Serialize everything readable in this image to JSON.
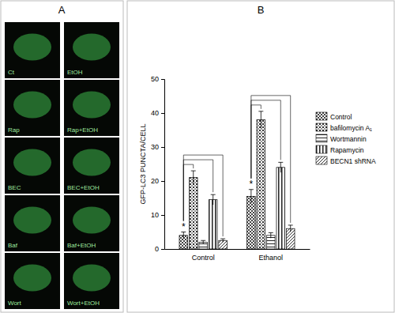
{
  "panel_a": {
    "label": "A",
    "images": [
      "Ct",
      "EtOH",
      "Rap",
      "Rap+EtOH",
      "BEC",
      "BEC+EtOH",
      "Baf",
      "Baf+EtOH",
      "Wort",
      "Wort+EtOH"
    ]
  },
  "panel_b": {
    "label": "B"
  },
  "chart_data": {
    "type": "bar",
    "y_label": "GFP-LC3 PUNCTA/CELL",
    "categories": [
      "Control",
      "Ethanol"
    ],
    "series": [
      {
        "name": "Control",
        "color": "#444444",
        "values": [
          4,
          15.5
        ],
        "errors": [
          1,
          2
        ]
      },
      {
        "name": "bafilomycin A₁",
        "color": "#333333",
        "values": [
          21,
          38
        ],
        "errors": [
          2,
          2.5
        ]
      },
      {
        "name": "Wortmannin",
        "color": "#222222",
        "values": [
          2,
          4
        ],
        "errors": [
          0.5,
          0.8
        ]
      },
      {
        "name": "Rapamycin",
        "color": "#222222",
        "values": [
          14.5,
          24
        ],
        "errors": [
          1.5,
          1.5
        ]
      },
      {
        "name": "BECN1 shRNA",
        "color": "#333333",
        "values": [
          2.5,
          6
        ],
        "errors": [
          0.5,
          1
        ]
      }
    ],
    "ylim": [
      0,
      50
    ],
    "yticks": [
      0,
      10,
      20,
      30,
      40,
      50
    ],
    "legend": "right",
    "annotations": [
      {
        "text": "*",
        "category": "Control"
      },
      {
        "text": "*",
        "category": "Ethanol"
      }
    ]
  }
}
